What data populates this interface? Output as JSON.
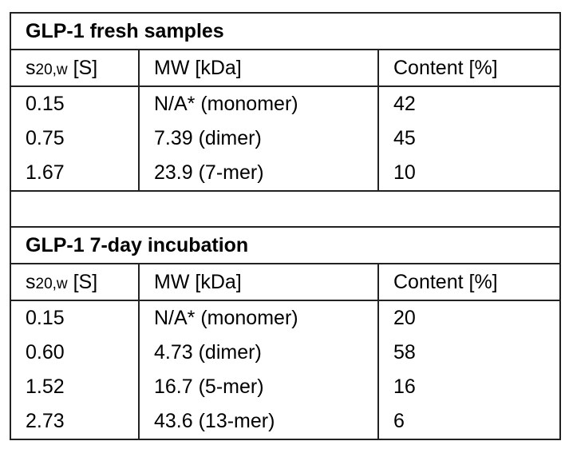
{
  "columns": {
    "s_base": "s",
    "s_sub": "20,w",
    "s_unit": " [S]",
    "mw": "MW [kDa]",
    "content": "Content [%]"
  },
  "sections": [
    {
      "title": "GLP-1 fresh samples",
      "rows": [
        {
          "s": "0.15",
          "mw": "N/A* (monomer)",
          "content": "42"
        },
        {
          "s": "0.75",
          "mw": "7.39 (dimer)",
          "content": "45"
        },
        {
          "s": "1.67",
          "mw": "23.9 (7-mer)",
          "content": "10"
        }
      ]
    },
    {
      "title": "GLP-1 7-day incubation",
      "rows": [
        {
          "s": "0.15",
          "mw": "N/A* (monomer)",
          "content": "20"
        },
        {
          "s": "0.60",
          "mw": "4.73 (dimer)",
          "content": "58"
        },
        {
          "s": "1.52",
          "mw": "16.7 (5-mer)",
          "content": "16"
        },
        {
          "s": "2.73",
          "mw": "43.6 (13-mer)",
          "content": "6"
        }
      ]
    }
  ]
}
